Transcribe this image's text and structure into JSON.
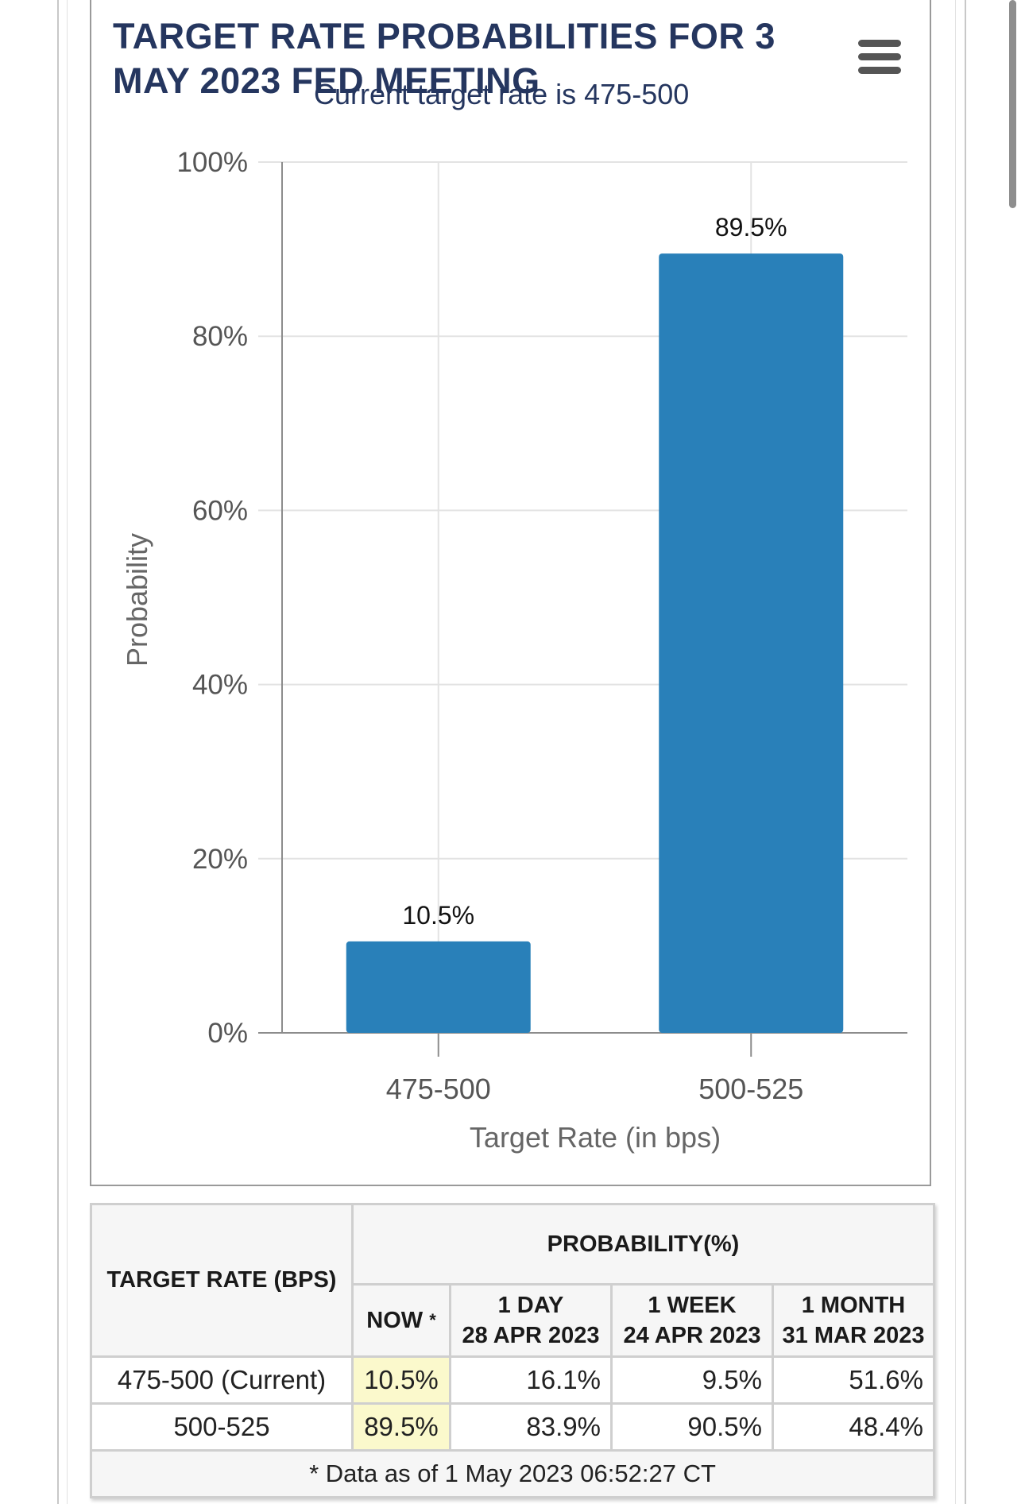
{
  "chart_data": {
    "type": "bar",
    "title": "TARGET RATE PROBABILITIES FOR 3 MAY 2023 FED MEETING",
    "subtitle": "Current target rate is 475-500",
    "categories": [
      "475-500",
      "500-525"
    ],
    "values": [
      10.5,
      89.5
    ],
    "data_labels": [
      "10.5%",
      "89.5%"
    ],
    "xlabel": "Target Rate (in bps)",
    "ylabel": "Probability",
    "ylim": [
      0,
      100
    ],
    "yticks": [
      0,
      20,
      40,
      60,
      80,
      100
    ],
    "ytick_labels": [
      "0%",
      "20%",
      "40%",
      "60%",
      "80%",
      "100%"
    ],
    "bar_color": "#2980b9",
    "grid": true
  },
  "table": {
    "header_rate": "TARGET RATE (BPS)",
    "header_prob": "PROBABILITY(%)",
    "columns": [
      {
        "line1": "NOW",
        "line2": "",
        "star": "*"
      },
      {
        "line1": "1 DAY",
        "line2": "28 APR 2023",
        "star": ""
      },
      {
        "line1": "1 WEEK",
        "line2": "24 APR 2023",
        "star": ""
      },
      {
        "line1": "1 MONTH",
        "line2": "31 MAR 2023",
        "star": ""
      }
    ],
    "rows": [
      {
        "rate": "475-500 (Current)",
        "now": "10.5%",
        "day": "16.1%",
        "week": "9.5%",
        "month": "51.6%"
      },
      {
        "rate": "500-525",
        "now": "89.5%",
        "day": "83.9%",
        "week": "90.5%",
        "month": "48.4%"
      }
    ],
    "footnote": "* Data as of 1 May 2023 06:52:27 CT"
  },
  "menu_icon": "hamburger-menu-icon"
}
